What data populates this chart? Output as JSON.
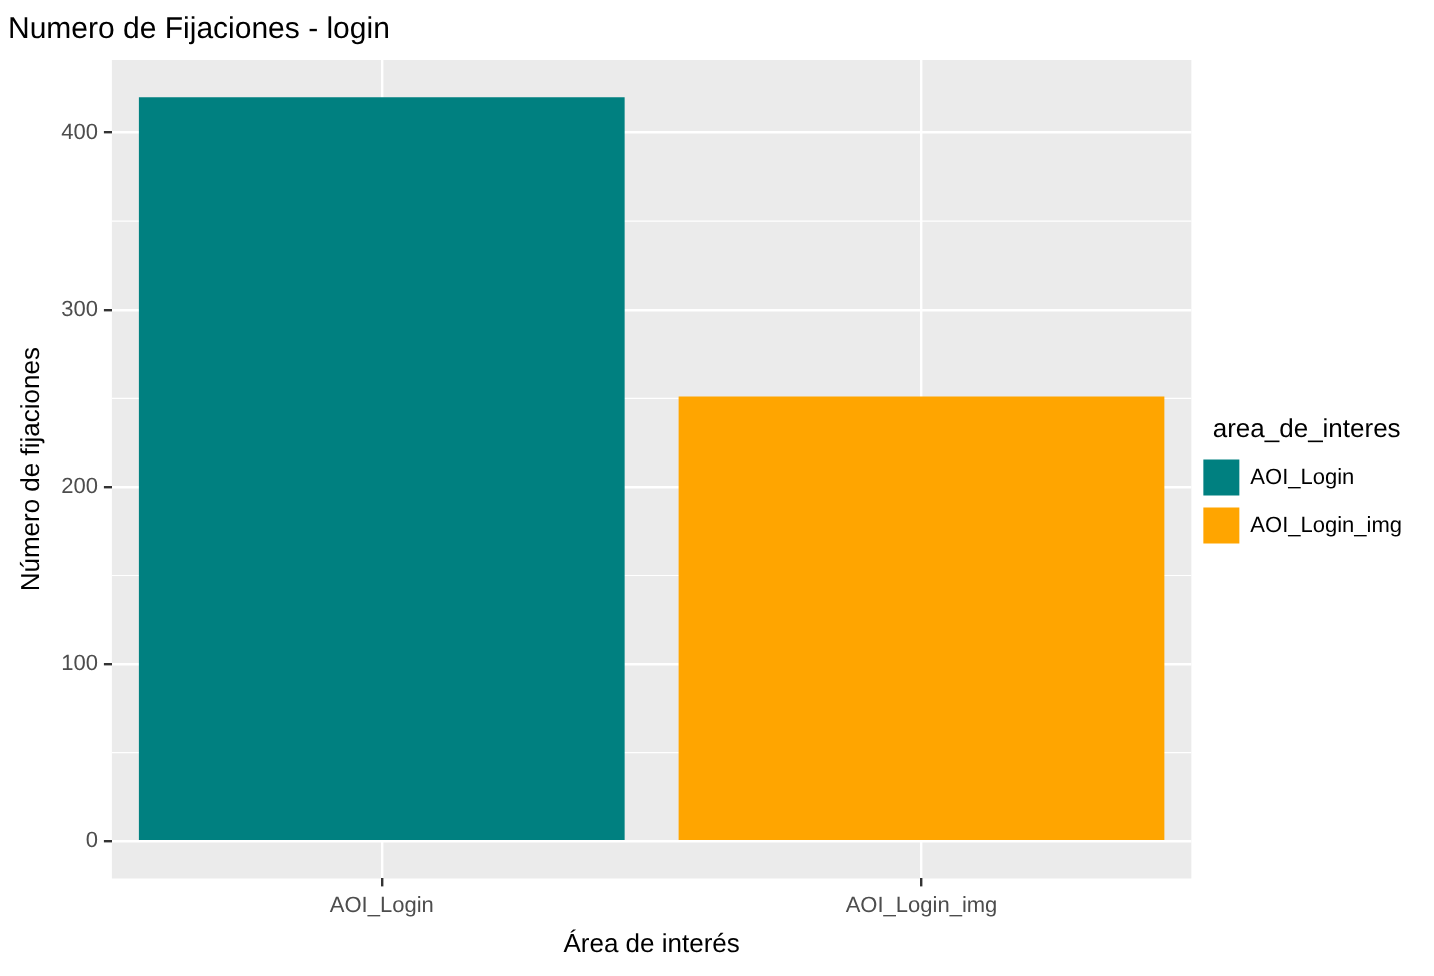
{
  "chart_data": {
    "type": "bar",
    "title": "Numero de Fijaciones - login",
    "xlabel": "Área de interés",
    "ylabel": "Número de fijaciones",
    "legend_title": "area_de_interes",
    "categories": [
      "AOI_Login",
      "AOI_Login_img"
    ],
    "series": [
      {
        "name": "AOI_Login",
        "color": "#008080",
        "values": [
          420,
          null
        ]
      },
      {
        "name": "AOI_Login_img",
        "color": "#ffa500",
        "values": [
          null,
          251
        ]
      }
    ],
    "ylim": [
      -21,
      441
    ],
    "yticks": [
      0,
      100,
      200,
      300,
      400
    ],
    "grid": true,
    "legend": "right"
  }
}
